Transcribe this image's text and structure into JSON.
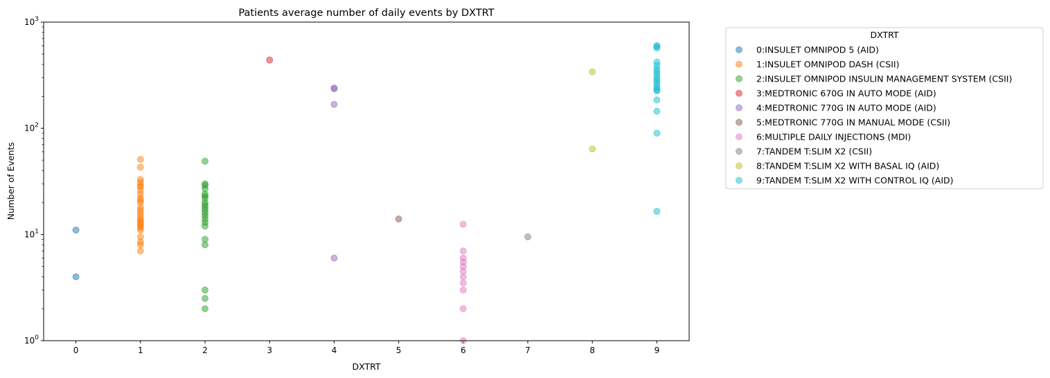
{
  "chart_data": {
    "type": "scatter",
    "title": "Patients average number of daily events by DXTRT",
    "xlabel": "DXTRT",
    "ylabel": "Number of Events",
    "x_ticks": [
      0,
      1,
      2,
      3,
      4,
      5,
      6,
      7,
      8,
      9
    ],
    "y_scale": "log",
    "ylim": [
      1,
      1000
    ],
    "xlim": [
      -0.5,
      9.5
    ],
    "y_tick_labels": [
      "10^0",
      "10^1",
      "10^2",
      "10^3"
    ],
    "grid": false,
    "legend_title": "DXTRT",
    "legend_position": "outside-upper-right",
    "series": [
      {
        "name": "0:INSULET OMNIPOD 5 (AID)",
        "color": "#1f77b4",
        "x": 0,
        "values": [
          11,
          4
        ]
      },
      {
        "name": "1:INSULET OMNIPOD DASH (CSII)",
        "color": "#ff7f0e",
        "x": 1,
        "values": [
          51,
          43,
          33,
          31,
          29,
          28,
          26,
          24,
          22,
          21,
          20,
          18,
          17,
          16,
          15,
          14,
          13.5,
          13,
          12.5,
          12,
          11.5,
          11,
          9.5,
          8.5,
          8,
          7
        ]
      },
      {
        "name": "2:INSULET OMNIPOD INSULIN MANAGEMENT SYSTEM (CSII)",
        "color": "#2ca02c",
        "x": 2,
        "values": [
          49,
          30,
          29,
          27,
          24,
          23,
          22,
          20,
          19,
          18,
          17,
          16,
          15,
          14,
          13,
          12,
          9,
          8,
          3,
          2.5,
          2
        ]
      },
      {
        "name": "3:MEDTRONIC 670G IN AUTO MODE (AID)",
        "color": "#d62728",
        "x": 3,
        "values": [
          440
        ]
      },
      {
        "name": "4:MEDTRONIC 770G IN AUTO MODE (AID)",
        "color": "#9467bd",
        "x": 4,
        "values": [
          240,
          235,
          168,
          6
        ]
      },
      {
        "name": "5:MEDTRONIC 770G IN MANUAL MODE (CSII)",
        "color": "#8c564b",
        "x": 5,
        "values": [
          14
        ]
      },
      {
        "name": "6:MULTIPLE DAILY INJECTIONS (MDI)",
        "color": "#e377c2",
        "x": 6,
        "values": [
          12.5,
          7,
          6,
          5.5,
          5,
          4.5,
          4,
          3.5,
          3,
          2,
          1
        ]
      },
      {
        "name": "7:TANDEM T:SLIM X2 (CSII)",
        "color": "#7f7f7f",
        "x": 7,
        "values": [
          9.5
        ]
      },
      {
        "name": "8:TANDEM T:SLIM X2 WITH BASAL IQ (AID)",
        "color": "#bcbd22",
        "x": 8,
        "values": [
          340,
          64
        ]
      },
      {
        "name": "9:TANDEM T:SLIM X2 WITH CONTROL IQ (AID)",
        "color": "#17becf",
        "x": 9,
        "values": [
          600,
          590,
          570,
          420,
          390,
          360,
          340,
          320,
          300,
          285,
          270,
          255,
          240,
          230,
          225,
          185,
          145,
          90,
          16.5
        ]
      }
    ]
  }
}
